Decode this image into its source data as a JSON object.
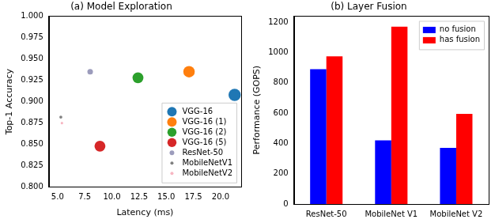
{
  "chart_data": [
    {
      "type": "scatter",
      "title": "(a) Model Exploration",
      "x_label": "Latency (ms)",
      "y_label": "Top-1 Accuracy",
      "xlim": [
        4.2,
        21.9
      ],
      "xticks": [
        {
          "value": 5,
          "label": "5.0"
        },
        {
          "value": 7.5,
          "label": "7.5"
        },
        {
          "value": 10,
          "label": "10.0"
        },
        {
          "value": 12.5,
          "label": "12.5"
        },
        {
          "value": 15,
          "label": "15.0"
        },
        {
          "value": 17.5,
          "label": "17.5"
        },
        {
          "value": 20,
          "label": "20.0"
        }
      ],
      "ylim": [
        0.8,
        1.0
      ],
      "yticks": [
        {
          "value": 0.8,
          "label": "0.800"
        },
        {
          "value": 0.825,
          "label": "0.825"
        },
        {
          "value": 0.85,
          "label": "0.850"
        },
        {
          "value": 0.875,
          "label": "0.875"
        },
        {
          "value": 0.9,
          "label": "0.900"
        },
        {
          "value": 0.925,
          "label": "0.925"
        },
        {
          "value": 0.95,
          "label": "0.950"
        },
        {
          "value": 0.975,
          "label": "0.975"
        },
        {
          "value": 1.0,
          "label": "1.000"
        }
      ],
      "grid": false,
      "legend": "lower right",
      "marker": "circle",
      "series": [
        {
          "name": "VGG-16",
          "color": "#1f77b4",
          "x": [
            21.3
          ],
          "values": [
            0.908
          ],
          "size": [
            240
          ]
        },
        {
          "name": "VGG-16 (1)",
          "color": "#ff7f0e",
          "x": [
            17.1
          ],
          "values": [
            0.935
          ],
          "size": [
            210
          ]
        },
        {
          "name": "VGG-16 (2)",
          "color": "#2ca02c",
          "x": [
            12.4
          ],
          "values": [
            0.928
          ],
          "size": [
            190
          ]
        },
        {
          "name": "VGG-16 (5)",
          "color": "#d62728",
          "x": [
            8.9
          ],
          "values": [
            0.848
          ],
          "size": [
            190
          ]
        },
        {
          "name": "ResNet-50",
          "color": "#9c9cbc",
          "x": [
            8.0
          ],
          "values": [
            0.935
          ],
          "size": [
            50
          ]
        },
        {
          "name": "MobileNetV1",
          "color": "#808080",
          "x": [
            5.3
          ],
          "values": [
            0.882
          ],
          "size": [
            14
          ]
        },
        {
          "name": "MobileNetV2",
          "color": "#f7b6c2",
          "x": [
            5.4
          ],
          "values": [
            0.875
          ],
          "size": [
            10
          ]
        }
      ]
    },
    {
      "type": "bar",
      "title": "(b) Layer Fusion",
      "y_label": "Performance (GOPS)",
      "categories": [
        "ResNet-50",
        "MobileNet V1",
        "MobileNet V2"
      ],
      "ylim": [
        0,
        1240
      ],
      "yticks": [
        0,
        200,
        400,
        600,
        800,
        1000,
        1200
      ],
      "grid": false,
      "legend": "upper right",
      "series": [
        {
          "name": "no fusion",
          "color": "#0000ff",
          "values": [
            890,
            420,
            370
          ]
        },
        {
          "name": "has fusion",
          "color": "#ff0000",
          "values": [
            975,
            1170,
            595
          ]
        }
      ]
    }
  ]
}
